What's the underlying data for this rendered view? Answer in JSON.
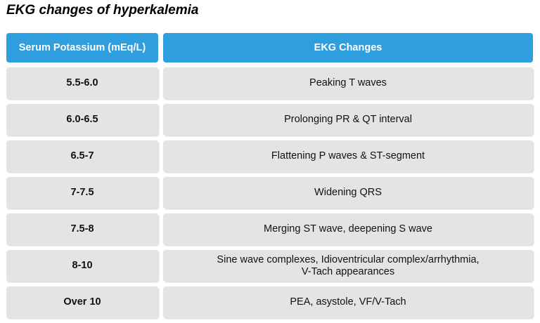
{
  "title": "EKG changes of hyperkalemia",
  "table": {
    "headers": [
      "Serum Potassium (mEq/L)",
      "EKG Changes"
    ],
    "rows": [
      {
        "potassium": "5.5-6.0",
        "change": "Peaking T waves"
      },
      {
        "potassium": "6.0-6.5",
        "change": "Prolonging PR & QT interval"
      },
      {
        "potassium": "6.5-7",
        "change": "Flattening P waves & ST-segment"
      },
      {
        "potassium": "7-7.5",
        "change": "Widening QRS"
      },
      {
        "potassium": "7.5-8",
        "change": "Merging ST wave, deepening S wave"
      },
      {
        "potassium": "8-10",
        "change": "Sine wave complexes, Idioventricular complex/arrhythmia,\nV-Tach appearances"
      },
      {
        "potassium": "Over 10",
        "change": "PEA, asystole, VF/V-Tach"
      }
    ]
  },
  "colors": {
    "header_bg": "#2f9ede",
    "header_text": "#ffffff",
    "row_bg": "#e4e4e4"
  }
}
